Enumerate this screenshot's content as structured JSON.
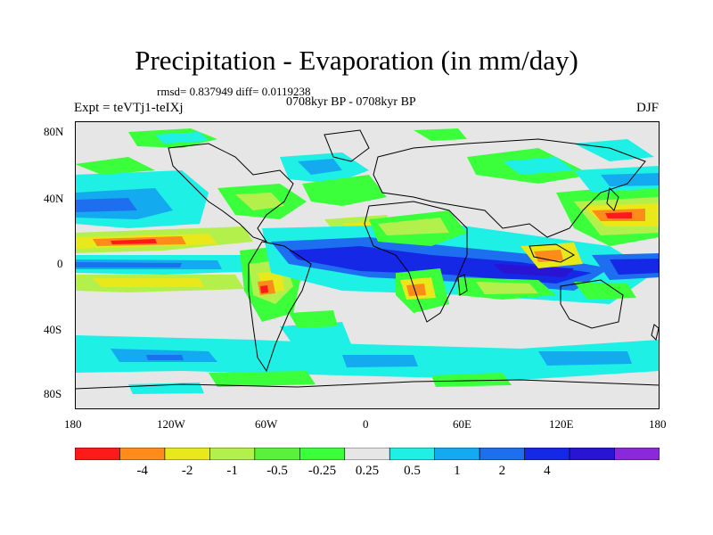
{
  "title": "Precipitation - Evaporation (in mm/day)",
  "stats": "rmsd= 0.837949 diff= 0.0119238",
  "subtitle": "0708kyr BP - 0708kyr BP",
  "expt_label": "Expt = teVTj1-teIXj",
  "season": "DJF",
  "y_ticks": [
    "80N",
    "40N",
    "0",
    "40S",
    "80S"
  ],
  "x_ticks": [
    "180",
    "120W",
    "60W",
    "0",
    "60E",
    "120E",
    "180"
  ],
  "colorbar": {
    "colors": [
      "#ff1a1a",
      "#ff8c1a",
      "#e8e81a",
      "#b4f04b",
      "#5af03c",
      "#3cff3c",
      "#e6e6e6",
      "#1ef0e6",
      "#14aaf0",
      "#1e6ef0",
      "#1428e6",
      "#2814d2",
      "#8c28dc"
    ],
    "labels": [
      "-4",
      "-2",
      "-1",
      "-0.5",
      "-0.25",
      "0.25",
      "0.5",
      "1",
      "2",
      "4"
    ]
  },
  "colors": {
    "background_land_sea": "#e6e6e6",
    "coast": "#000000"
  }
}
